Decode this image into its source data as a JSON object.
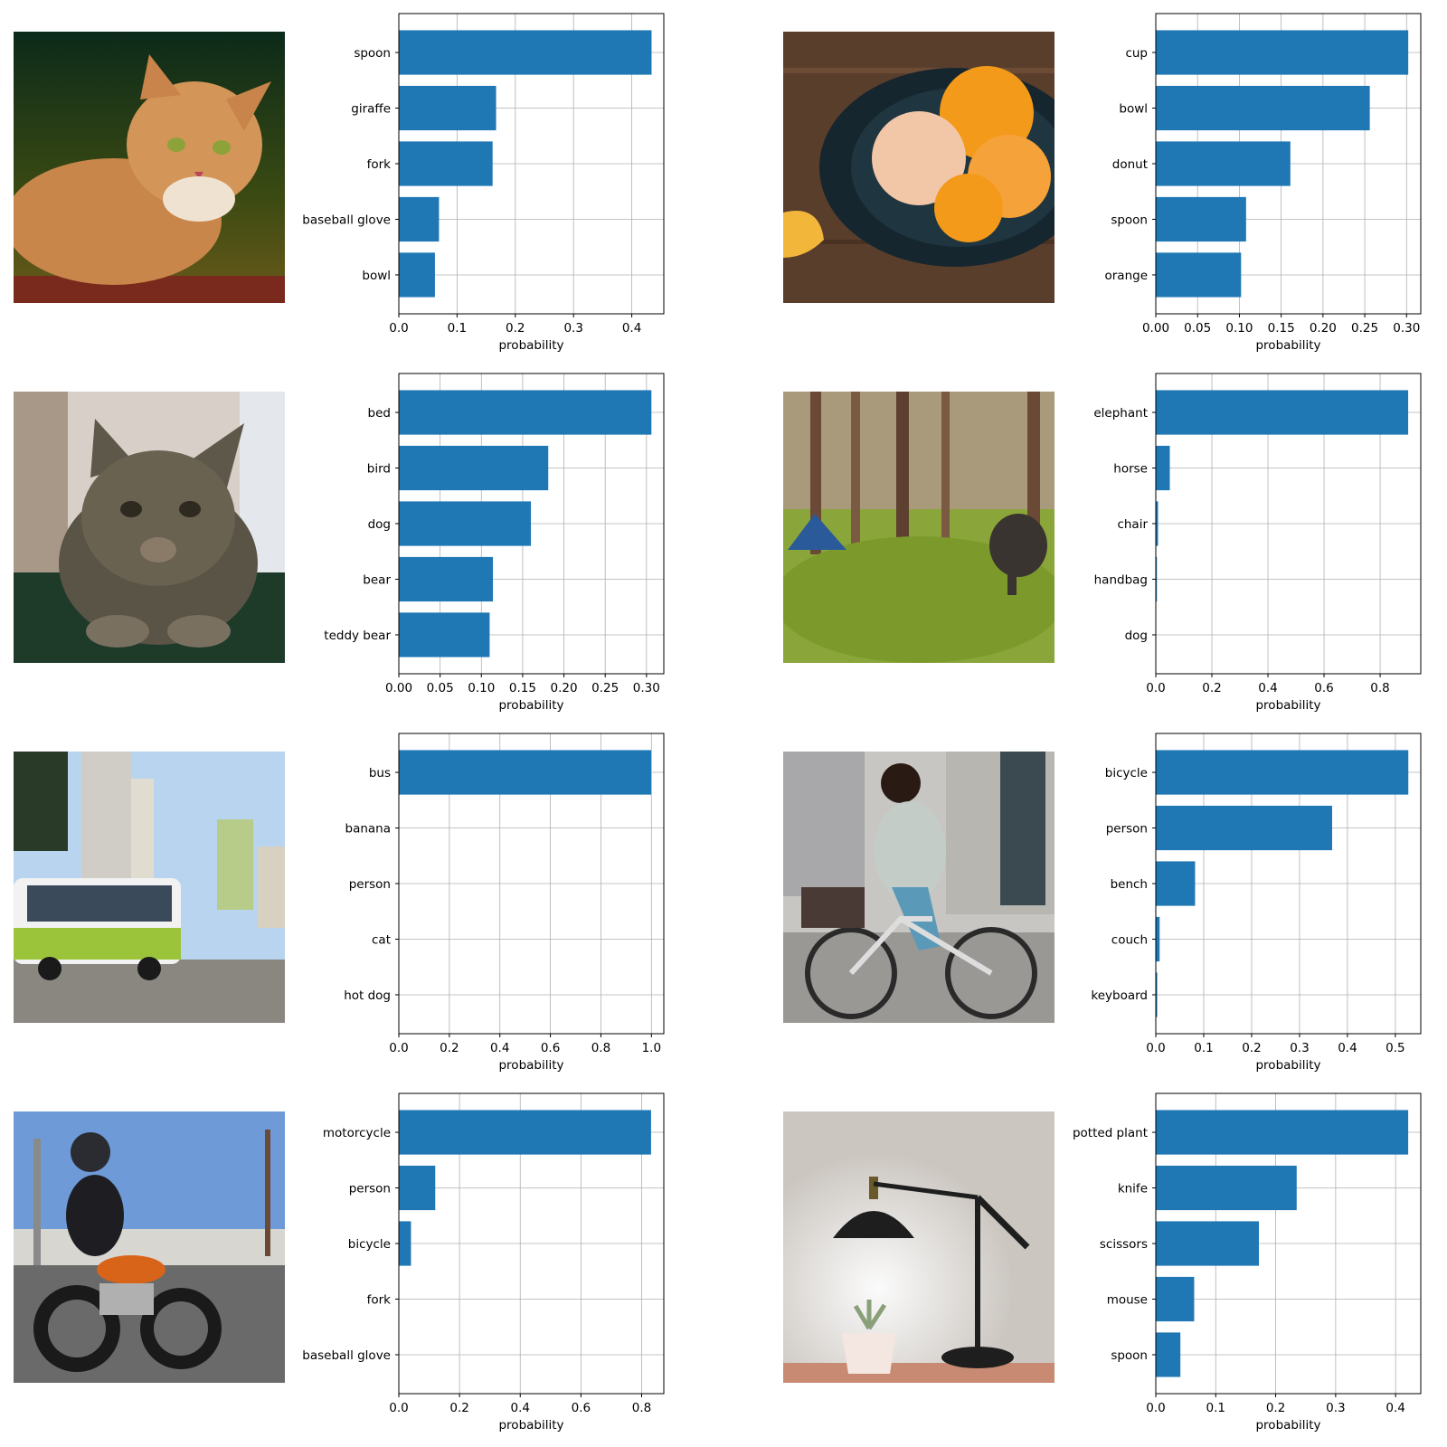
{
  "colors": {
    "bar": "#1f77b4",
    "grid": "#b0b0b0",
    "axis": "#000000"
  },
  "panels": [
    {
      "photo": {
        "icon": "tabby-cat-photo",
        "scene": "cat"
      }
    },
    {
      "photo": {
        "icon": "tangerines-plate-photo",
        "scene": "tangerines"
      }
    },
    {
      "photo": {
        "icon": "tabby-cat-closeup-photo",
        "scene": "cat2"
      }
    },
    {
      "photo": {
        "icon": "elephant-forest-photo",
        "scene": "elephant"
      }
    },
    {
      "photo": {
        "icon": "city-bus-photo",
        "scene": "bus"
      }
    },
    {
      "photo": {
        "icon": "woman-bicycle-photo",
        "scene": "bicycle"
      }
    },
    {
      "photo": {
        "icon": "motorcycle-rider-photo",
        "scene": "motorcycle"
      }
    },
    {
      "photo": {
        "icon": "desk-lamp-plant-photo",
        "scene": "lamp"
      }
    }
  ],
  "chart_data": [
    {
      "type": "bar",
      "orientation": "horizontal",
      "xlabel": "probability",
      "categories": [
        "spoon",
        "giraffe",
        "fork",
        "baseball glove",
        "bowl"
      ],
      "values": [
        0.434,
        0.167,
        0.161,
        0.069,
        0.062
      ],
      "xlim": [
        0,
        0.455
      ],
      "xticks": [
        0.0,
        0.1,
        0.2,
        0.3,
        0.4
      ],
      "xtick_labels": [
        "0.0",
        "0.1",
        "0.2",
        "0.3",
        "0.4"
      ],
      "grid": true
    },
    {
      "type": "bar",
      "orientation": "horizontal",
      "xlabel": "probability",
      "categories": [
        "cup",
        "bowl",
        "donut",
        "spoon",
        "orange"
      ],
      "values": [
        0.302,
        0.256,
        0.161,
        0.108,
        0.102
      ],
      "xlim": [
        0,
        0.317
      ],
      "xticks": [
        0.0,
        0.05,
        0.1,
        0.15,
        0.2,
        0.25,
        0.3
      ],
      "xtick_labels": [
        "0.00",
        "0.05",
        "0.10",
        "0.15",
        "0.20",
        "0.25",
        "0.30"
      ],
      "grid": true
    },
    {
      "type": "bar",
      "orientation": "horizontal",
      "xlabel": "probability",
      "categories": [
        "bed",
        "bird",
        "dog",
        "bear",
        "teddy bear"
      ],
      "values": [
        0.306,
        0.181,
        0.16,
        0.114,
        0.11
      ],
      "xlim": [
        0,
        0.321
      ],
      "xticks": [
        0.0,
        0.05,
        0.1,
        0.15,
        0.2,
        0.25,
        0.3
      ],
      "xtick_labels": [
        "0.00",
        "0.05",
        "0.10",
        "0.15",
        "0.20",
        "0.25",
        "0.30"
      ],
      "grid": true
    },
    {
      "type": "bar",
      "orientation": "horizontal",
      "xlabel": "probability",
      "categories": [
        "elephant",
        "horse",
        "chair",
        "handbag",
        "dog"
      ],
      "values": [
        0.9,
        0.05,
        0.008,
        0.004,
        0.001
      ],
      "xlim": [
        0,
        0.945
      ],
      "xticks": [
        0.0,
        0.2,
        0.4,
        0.6,
        0.8
      ],
      "xtick_labels": [
        "0.0",
        "0.2",
        "0.4",
        "0.6",
        "0.8"
      ],
      "grid": true
    },
    {
      "type": "bar",
      "orientation": "horizontal",
      "xlabel": "probability",
      "categories": [
        "bus",
        "banana",
        "person",
        "cat",
        "hot dog"
      ],
      "values": [
        0.999,
        0.0003,
        0.0002,
        0.0001,
        0.0001
      ],
      "xlim": [
        0,
        1.049
      ],
      "xticks": [
        0.0,
        0.2,
        0.4,
        0.6,
        0.8,
        1.0
      ],
      "xtick_labels": [
        "0.0",
        "0.2",
        "0.4",
        "0.6",
        "0.8",
        "1.0"
      ],
      "grid": true
    },
    {
      "type": "bar",
      "orientation": "horizontal",
      "xlabel": "probability",
      "categories": [
        "bicycle",
        "person",
        "bench",
        "couch",
        "keyboard"
      ],
      "values": [
        0.527,
        0.368,
        0.082,
        0.008,
        0.003
      ],
      "xlim": [
        0,
        0.553
      ],
      "xticks": [
        0.0,
        0.1,
        0.2,
        0.3,
        0.4,
        0.5
      ],
      "xtick_labels": [
        "0.0",
        "0.1",
        "0.2",
        "0.3",
        "0.4",
        "0.5"
      ],
      "grid": true
    },
    {
      "type": "bar",
      "orientation": "horizontal",
      "xlabel": "probability",
      "categories": [
        "motorcycle",
        "person",
        "bicycle",
        "fork",
        "baseball glove"
      ],
      "values": [
        0.831,
        0.12,
        0.04,
        0.0005,
        0.0003
      ],
      "xlim": [
        0,
        0.873
      ],
      "xticks": [
        0.0,
        0.2,
        0.4,
        0.6,
        0.8
      ],
      "xtick_labels": [
        "0.0",
        "0.2",
        "0.4",
        "0.6",
        "0.8"
      ],
      "grid": true
    },
    {
      "type": "bar",
      "orientation": "horizontal",
      "xlabel": "probability",
      "categories": [
        "potted plant",
        "knife",
        "scissors",
        "mouse",
        "spoon"
      ],
      "values": [
        0.421,
        0.235,
        0.172,
        0.064,
        0.041
      ],
      "xlim": [
        0,
        0.442
      ],
      "xticks": [
        0.0,
        0.1,
        0.2,
        0.3,
        0.4
      ],
      "xtick_labels": [
        "0.0",
        "0.1",
        "0.2",
        "0.3",
        "0.4"
      ],
      "grid": true
    }
  ]
}
